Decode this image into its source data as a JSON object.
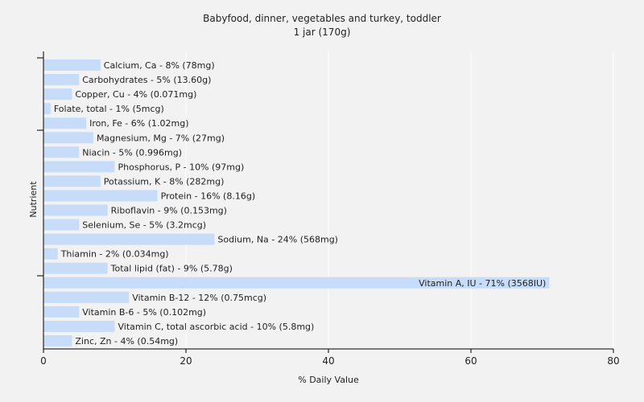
{
  "chart_data": {
    "type": "bar",
    "orientation": "horizontal",
    "title": "Babyfood, dinner, vegetables and turkey, toddler",
    "subtitle": "1 jar (170g)",
    "xlabel": "% Daily Value",
    "ylabel": "Nutrient",
    "xlim": [
      0,
      80
    ],
    "xticks": [
      0,
      20,
      40,
      60,
      80
    ],
    "grid": true,
    "bar_color": "#c6dcf9",
    "categories": [
      "Calcium, Ca",
      "Carbohydrates",
      "Copper, Cu",
      "Folate, total",
      "Iron, Fe",
      "Magnesium, Mg",
      "Niacin",
      "Phosphorus, P",
      "Potassium, K",
      "Protein",
      "Riboflavin",
      "Selenium, Se",
      "Sodium, Na",
      "Thiamin",
      "Total lipid (fat)",
      "Vitamin A, IU",
      "Vitamin B-12",
      "Vitamin B-6",
      "Vitamin C, total ascorbic acid",
      "Zinc, Zn"
    ],
    "values": [
      8,
      5,
      4,
      1,
      6,
      7,
      5,
      10,
      8,
      16,
      9,
      5,
      24,
      2,
      9,
      71,
      12,
      5,
      10,
      4
    ],
    "labels": [
      "Calcium, Ca - 8% (78mg)",
      "Carbohydrates - 5% (13.60g)",
      "Copper, Cu - 4% (0.071mg)",
      "Folate, total - 1% (5mcg)",
      "Iron, Fe - 6% (1.02mg)",
      "Magnesium, Mg - 7% (27mg)",
      "Niacin - 5% (0.996mg)",
      "Phosphorus, P - 10% (97mg)",
      "Potassium, K - 8% (282mg)",
      "Protein - 16% (8.16g)",
      "Riboflavin - 9% (0.153mg)",
      "Selenium, Se - 5% (3.2mcg)",
      "Sodium, Na - 24% (568mg)",
      "Thiamin - 2% (0.034mg)",
      "Total lipid (fat) - 9% (5.78g)",
      "Vitamin A, IU - 71% (3568IU)",
      "Vitamin B-12 - 12% (0.75mcg)",
      "Vitamin B-6 - 5% (0.102mg)",
      "Vitamin C, total ascorbic acid - 10% (5.8mg)",
      "Zinc, Zn - 4% (0.54mg)"
    ]
  }
}
